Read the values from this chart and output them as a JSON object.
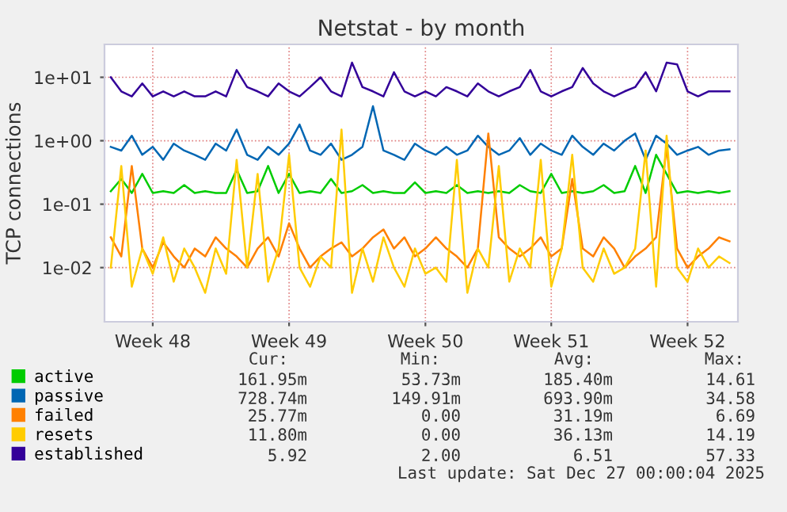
{
  "chart_data": {
    "type": "line",
    "title": "Netstat - by month",
    "ylabel": "TCP connections",
    "categories": [
      null,
      null,
      null,
      null,
      "Week 48",
      null,
      null,
      null,
      null,
      null,
      null,
      null,
      null,
      null,
      null,
      null,
      null,
      "Week 49",
      null,
      null,
      null,
      null,
      null,
      null,
      null,
      null,
      null,
      null,
      null,
      null,
      "Week 50",
      null,
      null,
      null,
      null,
      null,
      null,
      null,
      null,
      null,
      null,
      null,
      "Week 51",
      null,
      null,
      null,
      null,
      null,
      null,
      null,
      null,
      null,
      null,
      null,
      null,
      "Week 52",
      null,
      null,
      null,
      null
    ],
    "series": [
      {
        "name": "active",
        "color": "#00cc00",
        "values": [
          0.16,
          0.25,
          0.15,
          0.3,
          0.15,
          0.16,
          0.15,
          0.2,
          0.15,
          0.16,
          0.15,
          0.15,
          0.35,
          0.15,
          0.16,
          0.4,
          0.15,
          0.3,
          0.15,
          0.16,
          0.15,
          0.25,
          0.15,
          0.16,
          0.2,
          0.15,
          0.16,
          0.15,
          0.15,
          0.22,
          0.15,
          0.16,
          0.15,
          0.2,
          0.15,
          0.16,
          0.15,
          0.16,
          0.15,
          0.2,
          0.16,
          0.15,
          0.3,
          0.15,
          0.16,
          0.15,
          0.16,
          0.2,
          0.15,
          0.16,
          0.4,
          0.15,
          0.6,
          0.3,
          0.15,
          0.16,
          0.15,
          0.16,
          0.15,
          0.16
        ]
      },
      {
        "name": "passive",
        "color": "#0066b3",
        "values": [
          0.8,
          0.7,
          1.2,
          0.6,
          0.8,
          0.5,
          0.9,
          0.7,
          0.6,
          0.5,
          0.9,
          0.7,
          1.5,
          0.6,
          0.5,
          0.8,
          0.6,
          0.9,
          1.8,
          0.7,
          0.6,
          0.9,
          0.5,
          0.6,
          0.8,
          3.5,
          0.7,
          0.6,
          0.5,
          0.9,
          0.7,
          0.6,
          0.8,
          0.6,
          0.7,
          1.2,
          0.8,
          0.6,
          0.7,
          1.1,
          0.6,
          0.9,
          0.7,
          0.6,
          1.2,
          0.8,
          0.6,
          0.9,
          0.7,
          1.0,
          1.3,
          0.5,
          1.2,
          0.9,
          0.6,
          0.7,
          0.8,
          0.6,
          0.7,
          0.73
        ]
      },
      {
        "name": "failed",
        "color": "#ff8000",
        "values": [
          0.03,
          0.015,
          0.4,
          0.02,
          0.01,
          0.025,
          0.015,
          0.01,
          0.02,
          0.015,
          0.03,
          0.02,
          0.015,
          0.01,
          0.02,
          0.03,
          0.015,
          0.05,
          0.02,
          0.01,
          0.015,
          0.02,
          0.025,
          0.015,
          0.02,
          0.03,
          0.04,
          0.02,
          0.03,
          0.015,
          0.02,
          0.03,
          0.02,
          0.015,
          0.01,
          0.02,
          1.3,
          0.03,
          0.02,
          0.015,
          0.02,
          0.03,
          0.015,
          0.02,
          0.25,
          0.02,
          0.015,
          0.03,
          0.02,
          0.01,
          0.015,
          0.02,
          0.03,
          0.8,
          0.02,
          0.01,
          0.015,
          0.02,
          0.03,
          0.026
        ]
      },
      {
        "name": "resets",
        "color": "#ffcc00",
        "values": [
          0.01,
          0.4,
          0.005,
          0.02,
          0.008,
          0.03,
          0.006,
          0.02,
          0.01,
          0.004,
          0.02,
          0.008,
          0.5,
          0.01,
          0.3,
          0.006,
          0.02,
          0.6,
          0.01,
          0.005,
          0.015,
          0.01,
          1.5,
          0.004,
          0.02,
          0.006,
          0.03,
          0.01,
          0.005,
          0.02,
          0.008,
          0.01,
          0.006,
          0.5,
          0.004,
          0.02,
          0.01,
          0.4,
          0.006,
          0.02,
          0.01,
          0.5,
          0.005,
          0.02,
          0.6,
          0.01,
          0.006,
          0.02,
          0.008,
          0.01,
          0.02,
          0.7,
          0.005,
          1.2,
          0.01,
          0.006,
          0.02,
          0.01,
          0.015,
          0.0118
        ]
      },
      {
        "name": "established",
        "color": "#330099",
        "values": [
          10,
          6,
          5,
          8,
          5,
          6,
          5,
          6,
          5,
          5,
          6,
          5,
          13,
          7,
          6,
          5,
          8,
          6,
          5,
          7,
          10,
          6,
          5,
          17,
          7,
          6,
          5,
          12,
          6,
          5,
          6,
          5,
          7,
          6,
          5,
          8,
          6,
          5,
          6,
          7,
          13,
          6,
          5,
          6,
          7,
          14,
          8,
          6,
          5,
          6,
          7,
          12,
          6,
          17,
          16,
          6,
          5,
          6,
          6,
          6
        ]
      }
    ],
    "log": "y",
    "ylim": [
      0.0014,
      33
    ],
    "yticks": [
      {
        "value": 0.01,
        "label": "1e-02"
      },
      {
        "value": 0.1,
        "label": "1e-01"
      },
      {
        "value": 1,
        "label": "1e+00"
      },
      {
        "value": 10,
        "label": "1e+01"
      }
    ],
    "grid": true,
    "legend": "bottom",
    "line_style": "solid",
    "annotations": [
      "Cur:",
      "Min:",
      "Avg:",
      "Max:",
      "161.95m",
      "53.73m",
      "185.40m",
      "14.61",
      "728.74m",
      "149.91m",
      "693.90m",
      "34.58",
      "25.77m",
      "0.00",
      "31.19m",
      "6.69",
      "11.80m",
      "0.00",
      "36.13m",
      "14.19",
      "5.92",
      "2.00",
      "6.51",
      "57.33",
      "Last update: Sat Dec 27 00:00:04 2025"
    ]
  }
}
